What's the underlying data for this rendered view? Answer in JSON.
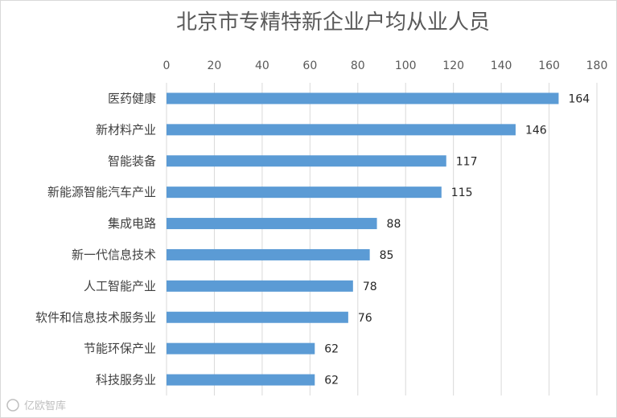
{
  "chart_data": {
    "type": "bar",
    "orientation": "horizontal",
    "title": "北京市专精特新企业户均从业人员",
    "categories": [
      "医药健康",
      "新材料产业",
      "智能装备",
      "新能源智能汽车产业",
      "集成电路",
      "新一代信息技术",
      "人工智能产业",
      "软件和信息技术服务业",
      "节能环保产业",
      "科技服务业"
    ],
    "values": [
      164,
      146,
      117,
      115,
      88,
      85,
      78,
      76,
      62,
      62
    ],
    "xlim": [
      0,
      180
    ],
    "xticks": [
      0,
      20,
      40,
      60,
      80,
      100,
      120,
      140,
      160,
      180
    ],
    "xaxis_position": "top",
    "grid": true,
    "legend": "none",
    "bar_color": "#5b9bd5"
  },
  "watermark": "亿欧智库"
}
